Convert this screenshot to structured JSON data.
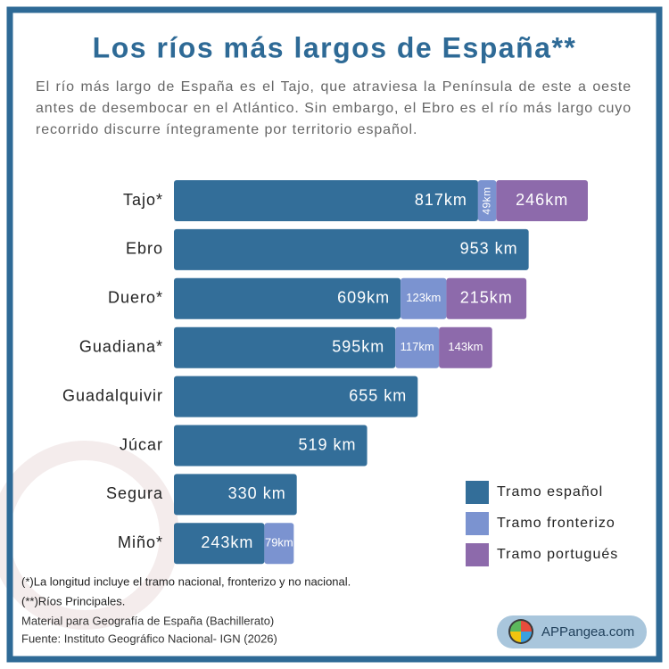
{
  "chart_data": {
    "type": "bar",
    "orientation": "horizontal",
    "stacked": true,
    "title": "Los ríos más largos de España**",
    "subtitle": "El río más largo de España es el Tajo, que atraviesa la Península de este a oeste antes de desembocar en el Atlántico. Sin embargo, el Ebro es el río más largo cuyo recorrido discurre íntegramente por territorio español.",
    "categories": [
      "Tajo*",
      "Ebro",
      "Duero*",
      "Guadiana*",
      "Guadalquivir",
      "Júcar",
      "Segura",
      "Miño*"
    ],
    "series": [
      {
        "name": "Tramo español",
        "color": "#336e99",
        "values": [
          817,
          953,
          609,
          595,
          655,
          519,
          330,
          243
        ],
        "value_labels": [
          "817km",
          "953 km",
          "609km",
          "595km",
          "655 km",
          "519 km",
          "330 km",
          "243km"
        ]
      },
      {
        "name": "Tramo fronterizo",
        "color": "#7b93d0",
        "values": [
          49,
          null,
          123,
          117,
          null,
          null,
          null,
          79
        ],
        "value_labels": [
          "49km",
          null,
          "123km",
          "117km",
          null,
          null,
          null,
          "79km"
        ]
      },
      {
        "name": "Tramo portugués",
        "color": "#8d6aab",
        "values": [
          246,
          null,
          215,
          143,
          null,
          null,
          null,
          null
        ],
        "value_labels": [
          "246km",
          null,
          "215km",
          "143km",
          null,
          null,
          null,
          null
        ]
      }
    ],
    "legend": "lower right",
    "notes": [
      "(*)La longitud incluye el tramo nacional, fronterizo y no nacional.",
      "(**)Ríos Principales."
    ],
    "source": [
      "Material para Geografía de España (Bachillerato)",
      "Fuente: Instituto Geográfico Nacional- IGN (2026)"
    ],
    "brand": "APPangea.com"
  }
}
